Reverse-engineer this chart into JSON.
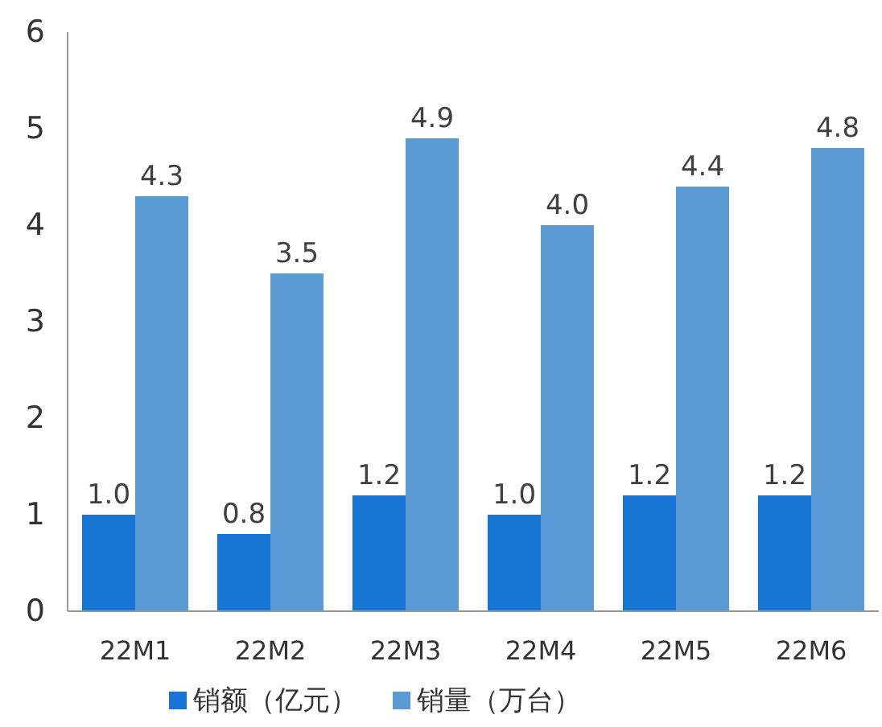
{
  "chart_data": {
    "type": "bar",
    "categories": [
      "22M1",
      "22M2",
      "22M3",
      "22M4",
      "22M5",
      "22M6"
    ],
    "series": [
      {
        "name": "销额（亿元）",
        "color": "#1874d2",
        "values": [
          1.0,
          0.8,
          1.2,
          1.0,
          1.2,
          1.2
        ],
        "value_labels": [
          "1.0",
          "0.8",
          "1.2",
          "1.0",
          "1.2",
          "1.2"
        ]
      },
      {
        "name": "销量（万台）",
        "color": "#5b9bd5",
        "values": [
          4.3,
          3.5,
          4.9,
          4.0,
          4.4,
          4.8
        ],
        "value_labels": [
          "4.3",
          "3.5",
          "4.9",
          "4.0",
          "4.4",
          "4.8"
        ]
      }
    ],
    "ylim": [
      0,
      6
    ],
    "yticks": [
      0,
      1,
      2,
      3,
      4,
      5,
      6
    ],
    "legend": "bottom"
  }
}
